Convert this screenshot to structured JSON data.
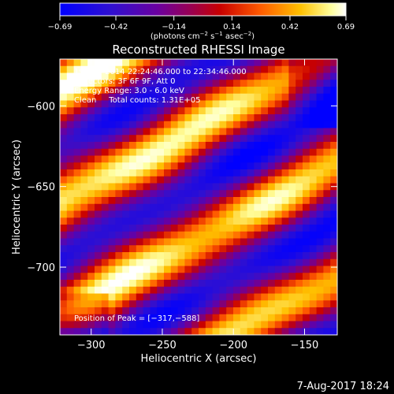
{
  "chart_data": {
    "type": "heatmap",
    "title": "Reconstructed RHESSI Image",
    "xlabel": "Heliocentric X (arcsec)",
    "ylabel": "Heliocentric Y (arcsec)",
    "xlim": [
      -322,
      -127
    ],
    "ylim": [
      -742,
      -571
    ],
    "x_ticks": [
      -300,
      -250,
      -200,
      -150
    ],
    "x_tick_labels": [
      "−300",
      "−250",
      "−200",
      "−150"
    ],
    "y_ticks": [
      -600,
      -650,
      -700
    ],
    "y_tick_labels": [
      "−600",
      "−650",
      "−700"
    ],
    "colorbar": {
      "range": [
        -0.69,
        0.69
      ],
      "ticks": [
        -0.69,
        -0.42,
        -0.14,
        0.14,
        0.42,
        0.69
      ],
      "tick_labels": [
        "−0.69",
        "−0.42",
        "−0.14",
        "0.14",
        "0.42",
        "0.69"
      ],
      "unit_label": "(photons cm",
      "unit_exp1": "−2",
      "unit_mid": " s",
      "unit_exp2": "−1",
      "unit_mid2": " asec",
      "unit_exp3": "−2",
      "unit_end": ")"
    },
    "annotations": {
      "time_range": "19-Nov-2014 22:24:46.000 to 22:34:46.000",
      "detectors": "Detectors: 3F 6F 9F, Att 0",
      "energy": "Energy Range: 3.0 - 6.0 keV",
      "method_counts": "Clean     Total counts: 1.31E+05",
      "peak": "Position of Peak = [−317,−588]"
    },
    "peak_position": [
      -317,
      -588
    ],
    "colors": {
      "background": "#000000",
      "colormap": [
        "#000000",
        "#2010ff",
        "#6a00a8",
        "#9a0060",
        "#c00000",
        "#ff5000",
        "#ffc000",
        "#ffff80",
        "#ffffff"
      ]
    }
  },
  "footer": {
    "date": "7-Aug-2017 18:24"
  }
}
